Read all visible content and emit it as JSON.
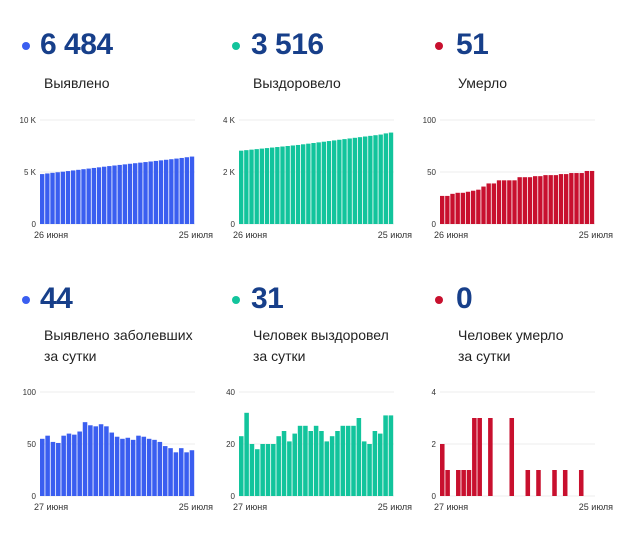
{
  "colors": {
    "cases": "#3a5ef0",
    "recovered": "#12c49c",
    "deaths": "#c8102e",
    "number": "#173f8a",
    "grid": "#eeeeee"
  },
  "panels": [
    {
      "id": "cases-total",
      "value": "6 484",
      "label_lines": [
        "Выявлено"
      ],
      "color_key": "cases"
    },
    {
      "id": "recovered-total",
      "value": "3 516",
      "label_lines": [
        "Выздоровело"
      ],
      "color_key": "recovered"
    },
    {
      "id": "deaths-total",
      "value": "51",
      "label_lines": [
        "Умерло"
      ],
      "color_key": "deaths"
    },
    {
      "id": "cases-daily",
      "value": "44",
      "label_lines": [
        "Выявлено заболевших",
        "за сутки"
      ],
      "color_key": "cases"
    },
    {
      "id": "recovered-daily",
      "value": "31",
      "label_lines": [
        "Человек выздоровел",
        "за сутки"
      ],
      "color_key": "recovered"
    },
    {
      "id": "deaths-daily",
      "value": "0",
      "label_lines": [
        "Человек умерло",
        "за сутки"
      ],
      "color_key": "deaths"
    }
  ],
  "chart_data": [
    {
      "type": "bar",
      "title": "Выявлено",
      "x_start_label": "26 июня",
      "x_end_label": "25 июля",
      "yticks": [
        0,
        5000,
        10000
      ],
      "ytick_labels": [
        "0",
        "5 K",
        "10 K"
      ],
      "ylim": [
        0,
        10000
      ],
      "grid": true,
      "values": [
        4800,
        4860,
        4920,
        4975,
        5030,
        5090,
        5150,
        5210,
        5270,
        5330,
        5390,
        5450,
        5510,
        5570,
        5625,
        5680,
        5735,
        5790,
        5845,
        5900,
        5955,
        6010,
        6065,
        6120,
        6175,
        6230,
        6290,
        6350,
        6420,
        6484
      ]
    },
    {
      "type": "bar",
      "title": "Выздоровело",
      "x_start_label": "26 июня",
      "x_end_label": "25 июля",
      "yticks": [
        0,
        2000,
        4000
      ],
      "ytick_labels": [
        "0",
        "2 K",
        "4 K"
      ],
      "ylim": [
        0,
        4000
      ],
      "grid": true,
      "values": [
        2820,
        2840,
        2860,
        2880,
        2900,
        2920,
        2940,
        2960,
        2980,
        3000,
        3020,
        3040,
        3065,
        3090,
        3115,
        3140,
        3165,
        3190,
        3215,
        3240,
        3265,
        3290,
        3315,
        3340,
        3365,
        3390,
        3415,
        3440,
        3485,
        3516
      ]
    },
    {
      "type": "bar",
      "title": "Умерло",
      "x_start_label": "26 июня",
      "x_end_label": "25 июля",
      "yticks": [
        0,
        50,
        100
      ],
      "ytick_labels": [
        "0",
        "50",
        "100"
      ],
      "ylim": [
        0,
        100
      ],
      "grid": true,
      "values": [
        27,
        27,
        29,
        30,
        30,
        31,
        32,
        33,
        36,
        39,
        39,
        42,
        42,
        42,
        42,
        45,
        45,
        45,
        46,
        46,
        47,
        47,
        47,
        48,
        48,
        49,
        49,
        49,
        51,
        51
      ]
    },
    {
      "type": "bar",
      "title": "Выявлено заболевших за сутки",
      "x_start_label": "27 июня",
      "x_end_label": "25 июля",
      "yticks": [
        0,
        50,
        100
      ],
      "ytick_labels": [
        "0",
        "50",
        "100"
      ],
      "ylim": [
        0,
        100
      ],
      "grid": true,
      "values": [
        55,
        58,
        52,
        51,
        58,
        60,
        59,
        62,
        71,
        68,
        67,
        69,
        67,
        61,
        57,
        55,
        56,
        54,
        58,
        57,
        55,
        54,
        52,
        48,
        46,
        42,
        46,
        42,
        44
      ]
    },
    {
      "type": "bar",
      "title": "Человек выздоровел за сутки",
      "x_start_label": "27 июня",
      "x_end_label": "25 июля",
      "yticks": [
        0,
        20,
        40
      ],
      "ytick_labels": [
        "0",
        "20",
        "40"
      ],
      "ylim": [
        0,
        40
      ],
      "grid": true,
      "values": [
        23,
        32,
        20,
        18,
        20,
        20,
        20,
        23,
        25,
        21,
        24,
        27,
        27,
        25,
        27,
        25,
        21,
        23,
        25,
        27,
        27,
        27,
        30,
        21,
        20,
        25,
        24,
        31,
        31
      ]
    },
    {
      "type": "bar",
      "title": "Человек умерло за сутки",
      "x_start_label": "27 июня",
      "x_end_label": "25 июля",
      "yticks": [
        0,
        2,
        4
      ],
      "ytick_labels": [
        "0",
        "2",
        "4"
      ],
      "ylim": [
        0,
        4
      ],
      "grid": true,
      "values": [
        2,
        1,
        0,
        1,
        1,
        1,
        3,
        3,
        0,
        3,
        0,
        0,
        0,
        3,
        0,
        0,
        1,
        0,
        1,
        0,
        0,
        1,
        0,
        1,
        0,
        0,
        1,
        0,
        0
      ]
    }
  ]
}
